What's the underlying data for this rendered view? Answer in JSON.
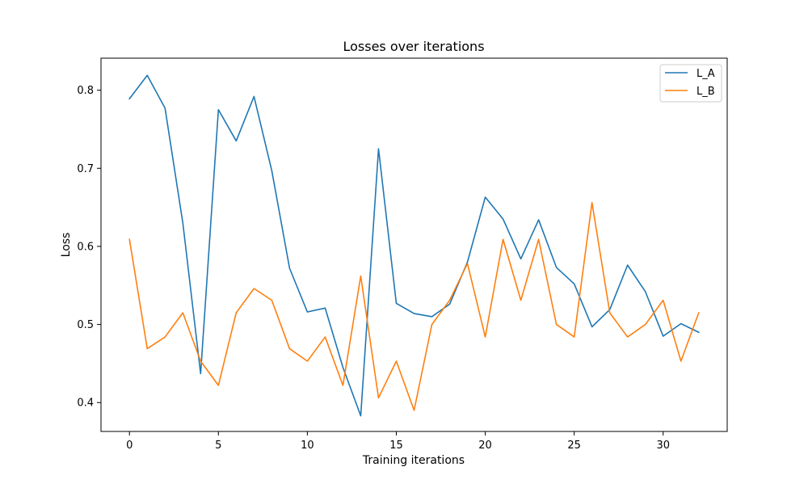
{
  "chart_data": {
    "type": "line",
    "title": "Losses over iterations",
    "xlabel": "Training iterations",
    "ylabel": "Loss",
    "xlim": [
      -1.6,
      33.6
    ],
    "ylim": [
      0.363,
      0.841
    ],
    "xticks": [
      0,
      5,
      10,
      15,
      20,
      25,
      30
    ],
    "yticks": [
      0.4,
      0.5,
      0.6,
      0.7,
      0.8
    ],
    "ytick_labels": [
      "0.4",
      "0.5",
      "0.6",
      "0.7",
      "0.8"
    ],
    "grid": false,
    "legend_position": "top-right",
    "x": [
      0,
      1,
      2,
      3,
      4,
      5,
      6,
      7,
      8,
      9,
      10,
      11,
      12,
      13,
      14,
      15,
      16,
      17,
      18,
      19,
      20,
      21,
      22,
      23,
      24,
      25,
      26,
      27,
      28,
      29,
      30,
      31,
      32
    ],
    "series": [
      {
        "name": "L_A",
        "color": "#1f77b4",
        "values": [
          0.789,
          0.819,
          0.777,
          0.63,
          0.437,
          0.775,
          0.735,
          0.792,
          0.697,
          0.572,
          0.516,
          0.521,
          0.445,
          0.383,
          0.725,
          0.527,
          0.514,
          0.51,
          0.526,
          0.58,
          0.663,
          0.635,
          0.584,
          0.634,
          0.573,
          0.552,
          0.497,
          0.519,
          0.576,
          0.542,
          0.485,
          0.501,
          0.49
        ]
      },
      {
        "name": "L_B",
        "color": "#ff7f0e",
        "values": [
          0.609,
          0.469,
          0.484,
          0.515,
          0.453,
          0.422,
          0.515,
          0.546,
          0.531,
          0.469,
          0.453,
          0.484,
          0.422,
          0.562,
          0.406,
          0.453,
          0.39,
          0.5,
          0.531,
          0.578,
          0.484,
          0.609,
          0.531,
          0.609,
          0.5,
          0.484,
          0.656,
          0.515,
          0.484,
          0.5,
          0.531,
          0.453,
          0.515
        ]
      }
    ]
  }
}
